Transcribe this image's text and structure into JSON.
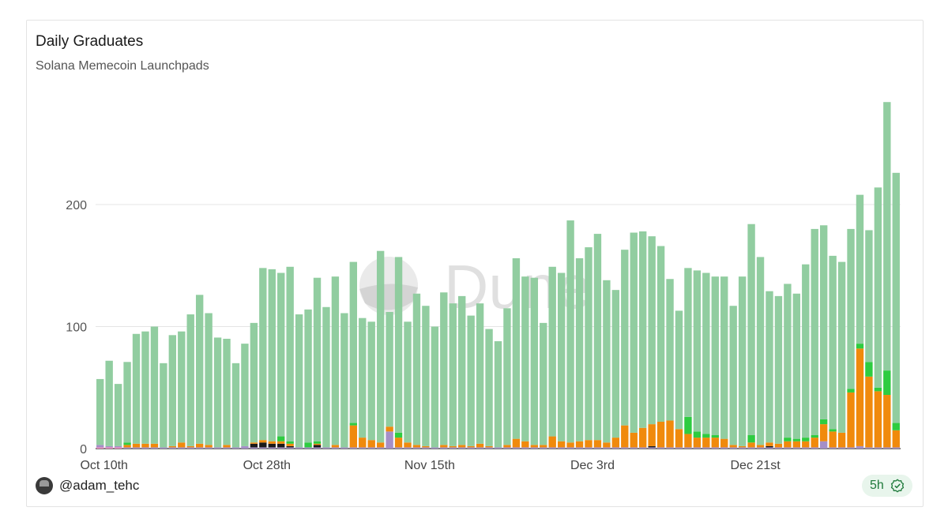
{
  "header": {
    "title": "Daily Graduates",
    "subtitle": "Solana Memecoin Launchpads"
  },
  "footer": {
    "username": "@adam_tehc",
    "age": "5h"
  },
  "watermark": "Dune",
  "colors": {
    "green": "#8fcc9e",
    "bright_green": "#2ecc40",
    "orange": "#f08a0c",
    "purple": "#a58fc7",
    "black": "#1a1a1a",
    "pink": "#f08fc0",
    "badge_text": "#1f7a3b"
  },
  "chart_data": {
    "type": "bar",
    "stacked": true,
    "x_ticks": [
      "Oct 10th",
      "Oct 28th",
      "Nov 15th",
      "Dec 3rd",
      "Dec 21st"
    ],
    "y_ticks": [
      0,
      100,
      200
    ],
    "ylim": [
      0,
      285
    ],
    "grid": true,
    "legend": "none",
    "totals": [
      57,
      72,
      53,
      71,
      94,
      96,
      100,
      70,
      93,
      96,
      110,
      126,
      111,
      91,
      90,
      70,
      86,
      103,
      148,
      147,
      144,
      149,
      110,
      114,
      140,
      116,
      141,
      111,
      153,
      107,
      104,
      162,
      112,
      157,
      104,
      127,
      117,
      100,
      128,
      119,
      125,
      109,
      119,
      98,
      88,
      115,
      156,
      141,
      140,
      103,
      149,
      144,
      187,
      156,
      165,
      176,
      138,
      130,
      163,
      177,
      178,
      174,
      166,
      139,
      113,
      148,
      146,
      144,
      141,
      141,
      117,
      141,
      184,
      157,
      129,
      125,
      135,
      127,
      151,
      180,
      183,
      158,
      153,
      180,
      208,
      179,
      214,
      284,
      226
    ],
    "orange": [
      0,
      0,
      0,
      2,
      3,
      3,
      3,
      0,
      1,
      4,
      1,
      3,
      2,
      0,
      2,
      0,
      0,
      1,
      2,
      2,
      2,
      2,
      0,
      0,
      1,
      0,
      2,
      0,
      18,
      8,
      6,
      4,
      4,
      8,
      4,
      2,
      1,
      0,
      2,
      1,
      2,
      1,
      3,
      1,
      0,
      2,
      7,
      5,
      2,
      2,
      9,
      5,
      4,
      5,
      6,
      6,
      4,
      8,
      18,
      12,
      16,
      18,
      21,
      22,
      15,
      11,
      8,
      8,
      8,
      7,
      2,
      1,
      4,
      2,
      3,
      3,
      5,
      5,
      5,
      8,
      14,
      13,
      12,
      45,
      80,
      58,
      46,
      43,
      14
    ],
    "bright_green": [
      0,
      0,
      0,
      2,
      0,
      0,
      0,
      0,
      0,
      0,
      0,
      0,
      0,
      0,
      0,
      0,
      0,
      0,
      0,
      0,
      4,
      2,
      0,
      4,
      2,
      0,
      0,
      0,
      2,
      0,
      0,
      0,
      0,
      4,
      0,
      0,
      0,
      0,
      0,
      0,
      0,
      0,
      0,
      0,
      0,
      0,
      0,
      0,
      0,
      0,
      0,
      0,
      0,
      0,
      0,
      0,
      0,
      0,
      0,
      0,
      0,
      0,
      0,
      0,
      0,
      14,
      5,
      3,
      2,
      0,
      0,
      0,
      6,
      0,
      0,
      0,
      3,
      2,
      3,
      2,
      4,
      2,
      0,
      3,
      4,
      12,
      3,
      20,
      6
    ],
    "purple": [
      2,
      1,
      1,
      1,
      1,
      1,
      1,
      1,
      1,
      1,
      1,
      1,
      1,
      1,
      1,
      1,
      2,
      1,
      1,
      1,
      1,
      1,
      1,
      1,
      1,
      1,
      1,
      1,
      1,
      1,
      1,
      1,
      14,
      1,
      1,
      1,
      1,
      1,
      1,
      1,
      1,
      1,
      1,
      1,
      1,
      1,
      1,
      1,
      1,
      1,
      1,
      1,
      1,
      1,
      1,
      1,
      1,
      1,
      1,
      1,
      1,
      1,
      1,
      1,
      1,
      1,
      1,
      1,
      1,
      1,
      1,
      1,
      1,
      1,
      1,
      1,
      1,
      1,
      1,
      1,
      6,
      1,
      1,
      1,
      2,
      1,
      1,
      1,
      1
    ],
    "black": [
      0,
      0,
      0,
      0,
      0,
      0,
      0,
      0,
      0,
      0,
      0,
      0,
      0,
      0,
      0,
      0,
      0,
      3,
      4,
      3,
      3,
      1,
      0,
      0,
      2,
      0,
      0,
      0,
      0,
      0,
      0,
      0,
      0,
      0,
      0,
      0,
      0,
      0,
      0,
      0,
      0,
      0,
      0,
      0,
      0,
      0,
      0,
      0,
      0,
      0,
      0,
      0,
      0,
      0,
      0,
      0,
      0,
      0,
      0,
      0,
      0,
      1,
      0,
      0,
      0,
      0,
      0,
      0,
      0,
      0,
      0,
      0,
      0,
      0,
      1,
      0,
      0,
      0,
      0,
      0,
      0,
      0,
      0,
      0,
      0,
      0,
      0,
      0,
      0
    ]
  }
}
